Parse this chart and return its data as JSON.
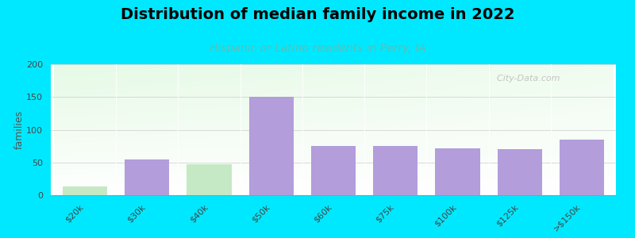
{
  "title": "Distribution of median family income in 2022",
  "subtitle": "Hispanic or Latino residents in Perry, IA",
  "ylabel": "families",
  "categories": [
    "$20k",
    "$30k",
    "$40k",
    "$50k",
    "$60k",
    "$75k",
    "$100k",
    "$125k",
    ">$150k"
  ],
  "values": [
    13,
    54,
    47,
    150,
    75,
    75,
    72,
    70,
    85
  ],
  "bar_color": "#b39ddb",
  "green_bar_indices": [
    0,
    2
  ],
  "green_bar_color": "#c5e8c5",
  "ylim": [
    0,
    200
  ],
  "yticks": [
    0,
    50,
    100,
    150,
    200
  ],
  "background_outer": "#00e8ff",
  "title_fontsize": 14,
  "subtitle_fontsize": 10,
  "ylabel_fontsize": 9,
  "tick_fontsize": 8,
  "watermark": "  City-Data.com",
  "subtitle_color": "#5bbfb5",
  "title_color": "#000000",
  "bar_width": 0.72
}
